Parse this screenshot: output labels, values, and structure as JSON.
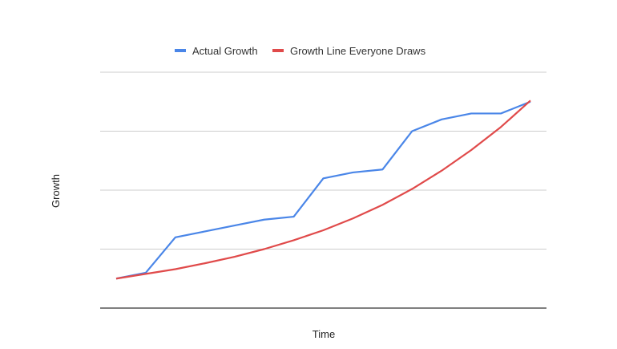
{
  "chart_data": {
    "type": "line",
    "title": "",
    "xlabel": "Time",
    "ylabel": "Growth",
    "x": [
      1,
      2,
      3,
      4,
      5,
      6,
      7,
      8,
      9,
      10,
      11,
      12,
      13,
      14,
      15
    ],
    "ylim": [
      0,
      4
    ],
    "grid": true,
    "legend_position": "top",
    "series": [
      {
        "name": "Actual Growth",
        "color": "#4a86e8",
        "values": [
          0.5,
          0.6,
          1.2,
          1.3,
          1.4,
          1.5,
          1.55,
          2.2,
          2.3,
          2.35,
          3.0,
          3.2,
          3.3,
          3.3,
          3.5
        ]
      },
      {
        "name": "Growth Line Everyone Draws",
        "color": "#e04a4a",
        "values": [
          0.5,
          0.58,
          0.66,
          0.76,
          0.87,
          1.0,
          1.15,
          1.32,
          1.52,
          1.75,
          2.02,
          2.33,
          2.68,
          3.07,
          3.52
        ]
      }
    ]
  }
}
